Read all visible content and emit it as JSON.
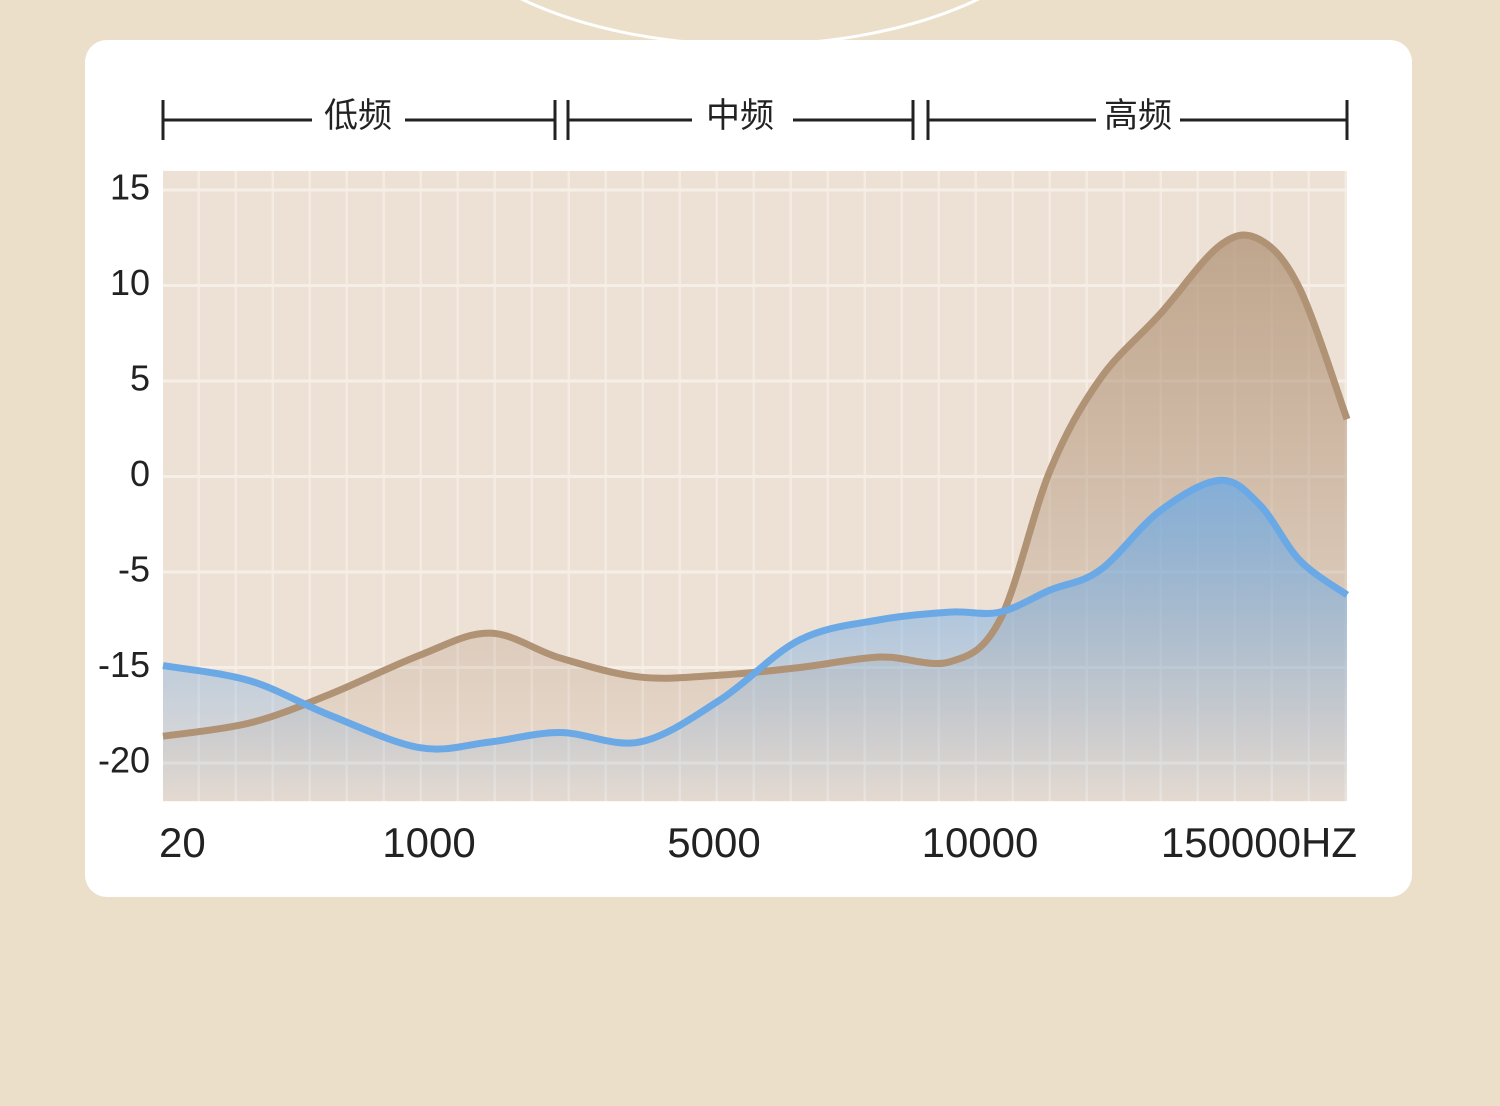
{
  "chart_data": {
    "type": "area",
    "annotations": [
      "低频",
      "中频",
      "高频"
    ],
    "x": [
      20,
      336,
      626,
      953,
      1800,
      2782,
      3905,
      5038,
      6541,
      8045,
      9361,
      16171,
      35455,
      54738,
      77879,
      101019,
      116446,
      131873,
      150000
    ],
    "xlim": [
      20,
      150000
    ],
    "xticks": [
      20,
      1000,
      5000,
      10000,
      {
        "value": 150000,
        "label": "150000HZ"
      }
    ],
    "ylim": [
      -22,
      16
    ],
    "yticks": [
      15,
      10,
      5,
      0,
      -5,
      -15,
      -20
    ],
    "grid": true,
    "series": [
      {
        "color": "#b09275",
        "values": [
          -18.6,
          -17.9,
          -16.4,
          -13.7,
          -11.4,
          -14.0,
          -15.5,
          -15.4,
          -15.0,
          -13.9,
          -14.4,
          -10.0,
          0.3,
          5.1,
          8.5,
          12.1,
          12.4,
          9.8,
          3.0
        ]
      },
      {
        "color": "#6aa9e6",
        "values": [
          -14.8,
          -15.7,
          -17.5,
          -19.2,
          -18.9,
          -18.4,
          -18.9,
          -16.7,
          -12.1,
          -10.0,
          -9.2,
          -9.2,
          -6.9,
          -4.9,
          -1.8,
          -0.2,
          -1.5,
          -4.4,
          -7.4
        ]
      }
    ]
  }
}
